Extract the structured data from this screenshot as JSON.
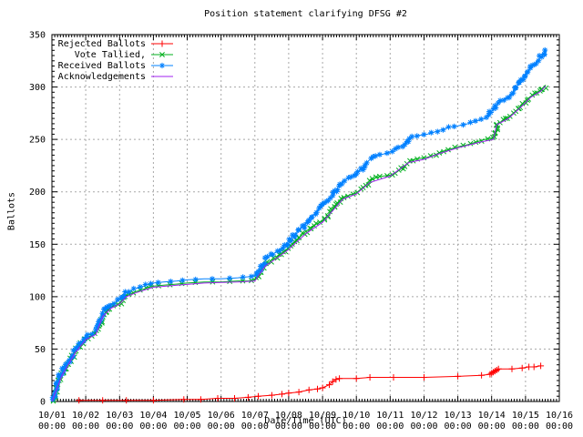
{
  "title": "Position statement clarifying DFSG #2",
  "xlabel": "Date/Time (UTC)",
  "ylabel": "Ballots",
  "colors": {
    "background": "#ffffff",
    "axis": "#000000",
    "grid": "#a8a8a8",
    "rejected": "#ff0000",
    "tallied": "#00b01e",
    "received": "#0080ff",
    "acknowledgements": "#a020f0"
  },
  "axes": {
    "x_tick_dates": [
      "10/01",
      "10/02",
      "10/03",
      "10/04",
      "10/05",
      "10/06",
      "10/07",
      "10/08",
      "10/09",
      "10/10",
      "10/11",
      "10/12",
      "10/13",
      "10/14",
      "10/15",
      "10/16"
    ],
    "x_tick_time": "00:00",
    "y_ticks": [
      0,
      50,
      100,
      150,
      200,
      250,
      300,
      350
    ]
  },
  "chart_data": {
    "type": "line",
    "title": "Position statement clarifying DFSG #2",
    "xlabel": "Date/Time (UTC)",
    "ylabel": "Ballots",
    "x_unit": "days since 10/01 00:00 UTC",
    "xlim": [
      0,
      15
    ],
    "ylim": [
      0,
      350
    ],
    "grid": true,
    "legend_position": "top-left-inside",
    "series": [
      {
        "name": "Rejected Ballots",
        "color": "#ff0000",
        "marker": "plus",
        "dense_markers": false,
        "points": [
          [
            0.8,
            1
          ],
          [
            1.5,
            1
          ],
          [
            2.2,
            1
          ],
          [
            3.0,
            1
          ],
          [
            3.9,
            2
          ],
          [
            4.4,
            2
          ],
          [
            4.9,
            3
          ],
          [
            5.4,
            3
          ],
          [
            5.8,
            4
          ],
          [
            6.1,
            5
          ],
          [
            6.5,
            6
          ],
          [
            6.8,
            7
          ],
          [
            7.0,
            8
          ],
          [
            7.3,
            9
          ],
          [
            7.6,
            11
          ],
          [
            7.85,
            12
          ],
          [
            8.0,
            13
          ],
          [
            8.2,
            16
          ],
          [
            8.3,
            19
          ],
          [
            8.4,
            21
          ],
          [
            8.5,
            22
          ],
          [
            9.0,
            22
          ],
          [
            9.4,
            23
          ],
          [
            10.1,
            23
          ],
          [
            11.0,
            23
          ],
          [
            12.0,
            24
          ],
          [
            12.7,
            25
          ],
          [
            12.95,
            26
          ],
          [
            13.0,
            27
          ],
          [
            13.05,
            28
          ],
          [
            13.1,
            29
          ],
          [
            13.15,
            30
          ],
          [
            13.2,
            31
          ],
          [
            13.6,
            31
          ],
          [
            13.9,
            32
          ],
          [
            14.1,
            33
          ],
          [
            14.25,
            33
          ],
          [
            14.45,
            34
          ]
        ]
      },
      {
        "name": "Vote Tallied,",
        "color": "#00b01e",
        "marker": "cross",
        "dense_markers": true,
        "points": [
          [
            0,
            0
          ],
          [
            0.04,
            1
          ],
          [
            0.08,
            4
          ],
          [
            0.12,
            9
          ],
          [
            0.16,
            14
          ],
          [
            0.2,
            19
          ],
          [
            0.25,
            23
          ],
          [
            0.3,
            26
          ],
          [
            0.35,
            29
          ],
          [
            0.45,
            34
          ],
          [
            0.55,
            40
          ],
          [
            0.65,
            45
          ],
          [
            0.75,
            50
          ],
          [
            0.85,
            54
          ],
          [
            0.95,
            58
          ],
          [
            1.0,
            60
          ],
          [
            1.1,
            62
          ],
          [
            1.25,
            64
          ],
          [
            1.35,
            68
          ],
          [
            1.42,
            73
          ],
          [
            1.48,
            80
          ],
          [
            1.55,
            84
          ],
          [
            1.65,
            87
          ],
          [
            1.75,
            90
          ],
          [
            1.9,
            92
          ],
          [
            2.0,
            94
          ],
          [
            2.1,
            98
          ],
          [
            2.2,
            101
          ],
          [
            2.35,
            103
          ],
          [
            2.5,
            105
          ],
          [
            2.7,
            107
          ],
          [
            2.85,
            109
          ],
          [
            3.0,
            110
          ],
          [
            3.3,
            111
          ],
          [
            3.7,
            112
          ],
          [
            4.0,
            113
          ],
          [
            4.5,
            114
          ],
          [
            5.0,
            114
          ],
          [
            5.5,
            115
          ],
          [
            5.8,
            115
          ],
          [
            6.0,
            116
          ],
          [
            6.1,
            120
          ],
          [
            6.2,
            125
          ],
          [
            6.35,
            131
          ],
          [
            6.5,
            135
          ],
          [
            6.7,
            139
          ],
          [
            6.9,
            144
          ],
          [
            7.0,
            147
          ],
          [
            7.15,
            151
          ],
          [
            7.3,
            156
          ],
          [
            7.5,
            162
          ],
          [
            7.7,
            167
          ],
          [
            7.85,
            170
          ],
          [
            8.0,
            172
          ],
          [
            8.15,
            177
          ],
          [
            8.3,
            183
          ],
          [
            8.45,
            189
          ],
          [
            8.6,
            194
          ],
          [
            8.8,
            197
          ],
          [
            9.0,
            199
          ],
          [
            9.15,
            203
          ],
          [
            9.3,
            207
          ],
          [
            9.45,
            211
          ],
          [
            9.6,
            214
          ],
          [
            9.8,
            215
          ],
          [
            10.0,
            216
          ],
          [
            10.2,
            219
          ],
          [
            10.4,
            224
          ],
          [
            10.55,
            228
          ],
          [
            10.7,
            231
          ],
          [
            10.9,
            232
          ],
          [
            11.1,
            233
          ],
          [
            11.3,
            235
          ],
          [
            11.5,
            238
          ],
          [
            11.8,
            241
          ],
          [
            12.0,
            243
          ],
          [
            12.3,
            245
          ],
          [
            12.6,
            248
          ],
          [
            12.8,
            250
          ],
          [
            12.95,
            251
          ],
          [
            13.1,
            252
          ],
          [
            13.14,
            258
          ],
          [
            13.18,
            265
          ],
          [
            13.3,
            267
          ],
          [
            13.45,
            270
          ],
          [
            13.6,
            274
          ],
          [
            13.75,
            278
          ],
          [
            13.9,
            283
          ],
          [
            14.0,
            287
          ],
          [
            14.15,
            291
          ],
          [
            14.3,
            294
          ],
          [
            14.45,
            297
          ],
          [
            14.6,
            302
          ]
        ]
      },
      {
        "name": "Received Ballots",
        "color": "#0080ff",
        "marker": "asterisk",
        "dense_markers": true,
        "points": [
          [
            0,
            0
          ],
          [
            0.04,
            2
          ],
          [
            0.08,
            6
          ],
          [
            0.12,
            11
          ],
          [
            0.16,
            17
          ],
          [
            0.2,
            21
          ],
          [
            0.25,
            25
          ],
          [
            0.3,
            28
          ],
          [
            0.35,
            31
          ],
          [
            0.45,
            36
          ],
          [
            0.55,
            42
          ],
          [
            0.65,
            47
          ],
          [
            0.75,
            52
          ],
          [
            0.85,
            56
          ],
          [
            0.95,
            60
          ],
          [
            1.0,
            63
          ],
          [
            1.1,
            64
          ],
          [
            1.25,
            66
          ],
          [
            1.35,
            70
          ],
          [
            1.42,
            76
          ],
          [
            1.48,
            83
          ],
          [
            1.55,
            87
          ],
          [
            1.65,
            90
          ],
          [
            1.75,
            93
          ],
          [
            1.9,
            95
          ],
          [
            2.0,
            97
          ],
          [
            2.1,
            101
          ],
          [
            2.2,
            104
          ],
          [
            2.35,
            106
          ],
          [
            2.5,
            108
          ],
          [
            2.7,
            110
          ],
          [
            2.85,
            112
          ],
          [
            3.0,
            113
          ],
          [
            3.3,
            114
          ],
          [
            3.7,
            115
          ],
          [
            4.0,
            116
          ],
          [
            4.5,
            117
          ],
          [
            5.0,
            117
          ],
          [
            5.5,
            118
          ],
          [
            5.8,
            119
          ],
          [
            6.0,
            120
          ],
          [
            6.1,
            124
          ],
          [
            6.2,
            129
          ],
          [
            6.35,
            136
          ],
          [
            6.5,
            140
          ],
          [
            6.7,
            144
          ],
          [
            6.9,
            149
          ],
          [
            7.0,
            153
          ],
          [
            7.15,
            158
          ],
          [
            7.3,
            163
          ],
          [
            7.5,
            170
          ],
          [
            7.7,
            177
          ],
          [
            7.85,
            182
          ],
          [
            8.0,
            186
          ],
          [
            8.15,
            191
          ],
          [
            8.3,
            197
          ],
          [
            8.45,
            204
          ],
          [
            8.6,
            210
          ],
          [
            8.8,
            214
          ],
          [
            9.0,
            217
          ],
          [
            9.15,
            222
          ],
          [
            9.3,
            228
          ],
          [
            9.45,
            232
          ],
          [
            9.6,
            235
          ],
          [
            9.8,
            236
          ],
          [
            10.0,
            238
          ],
          [
            10.2,
            241
          ],
          [
            10.4,
            245
          ],
          [
            10.55,
            250
          ],
          [
            10.7,
            253
          ],
          [
            10.9,
            254
          ],
          [
            11.1,
            255
          ],
          [
            11.3,
            257
          ],
          [
            11.5,
            259
          ],
          [
            11.8,
            262
          ],
          [
            12.0,
            263
          ],
          [
            12.3,
            265
          ],
          [
            12.6,
            268
          ],
          [
            12.8,
            270
          ],
          [
            12.95,
            274
          ],
          [
            13.05,
            279
          ],
          [
            13.15,
            283
          ],
          [
            13.3,
            287
          ],
          [
            13.4,
            289
          ],
          [
            13.5,
            291
          ],
          [
            13.65,
            296
          ],
          [
            13.8,
            303
          ],
          [
            13.95,
            310
          ],
          [
            14.1,
            316
          ],
          [
            14.25,
            321
          ],
          [
            14.4,
            327
          ],
          [
            14.55,
            332
          ],
          [
            14.62,
            335
          ]
        ]
      },
      {
        "name": "Acknowledgements",
        "color": "#a020f0",
        "marker": "none",
        "dense_markers": false,
        "points": [
          [
            0,
            0
          ],
          [
            0.3,
            25
          ],
          [
            0.7,
            47
          ],
          [
            1.0,
            59
          ],
          [
            1.3,
            64
          ],
          [
            1.5,
            81
          ],
          [
            1.75,
            89
          ],
          [
            2.0,
            93
          ],
          [
            2.2,
            100
          ],
          [
            2.5,
            104
          ],
          [
            3.0,
            109
          ],
          [
            3.7,
            111
          ],
          [
            4.5,
            113
          ],
          [
            5.5,
            114
          ],
          [
            6.0,
            115
          ],
          [
            6.3,
            129
          ],
          [
            6.7,
            138
          ],
          [
            7.0,
            145
          ],
          [
            7.5,
            160
          ],
          [
            8.0,
            171
          ],
          [
            8.6,
            193
          ],
          [
            9.0,
            198
          ],
          [
            9.4,
            209
          ],
          [
            10.0,
            215
          ],
          [
            10.55,
            228
          ],
          [
            11.0,
            231
          ],
          [
            11.5,
            237
          ],
          [
            12.0,
            242
          ],
          [
            12.6,
            247
          ],
          [
            13.05,
            250
          ],
          [
            13.15,
            264
          ],
          [
            13.5,
            270
          ],
          [
            13.9,
            282
          ],
          [
            14.15,
            290
          ],
          [
            14.45,
            296
          ],
          [
            14.6,
            301
          ]
        ]
      }
    ]
  }
}
